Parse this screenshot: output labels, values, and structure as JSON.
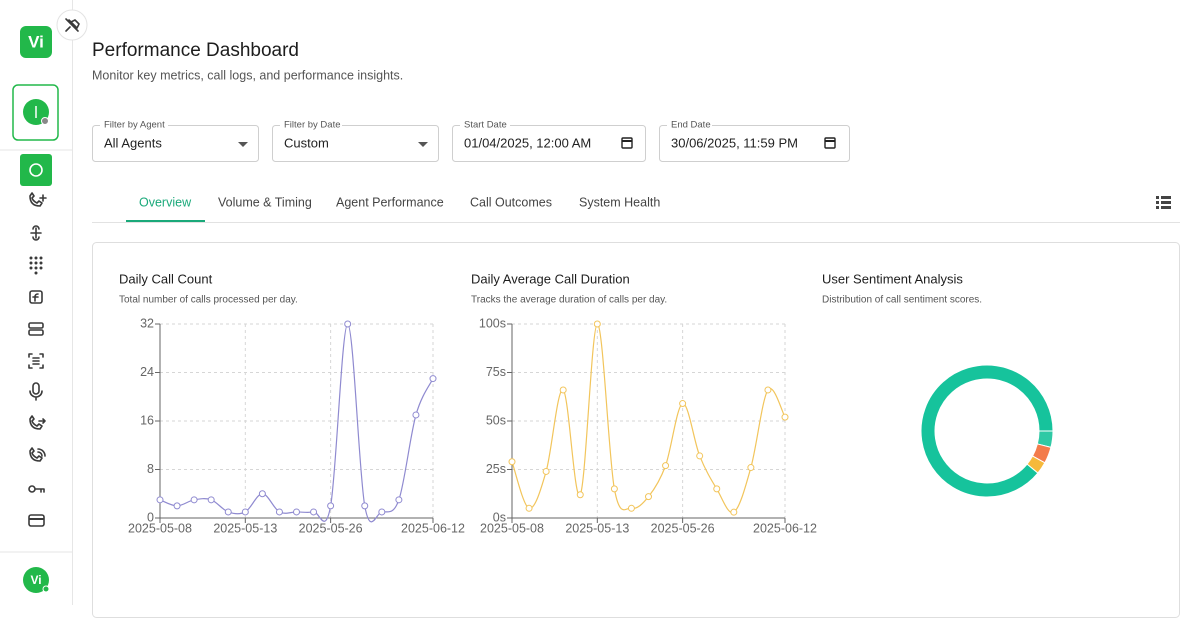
{
  "sidebar": {
    "logo": "Vi",
    "bottom_logo": "Vi"
  },
  "header": {
    "title": "Performance Dashboard",
    "subtitle": "Monitor key metrics, call logs, and performance insights."
  },
  "filters": [
    {
      "label": "Filter by Agent",
      "value": "All Agents"
    },
    {
      "label": "Filter by Date",
      "value": "Custom"
    },
    {
      "label": "Start Date",
      "value": "01/04/2025, 12:00 AM"
    },
    {
      "label": "End Date",
      "value": "30/06/2025, 11:59 PM"
    }
  ],
  "tabs": [
    "Overview",
    "Volume & Timing",
    "Agent Performance",
    "Call Outcomes",
    "System Health"
  ],
  "chart_data": [
    {
      "type": "line",
      "title": "Daily Call Count",
      "subtitle": "Total number of calls processed per day.",
      "categories": [
        "2025-05-08",
        null,
        null,
        null,
        null,
        "2025-05-13",
        null,
        null,
        null,
        null,
        "2025-05-26",
        null,
        null,
        null,
        null,
        null,
        "2025-06-12"
      ],
      "values": [
        3,
        2,
        3,
        3,
        1,
        1,
        4,
        1,
        1,
        1,
        2,
        32,
        2,
        1,
        3,
        17,
        23
      ],
      "color": "#8f8ad0",
      "ylim": [
        0,
        32
      ],
      "yticks": [
        0,
        8,
        16,
        24,
        32
      ],
      "grid": true
    },
    {
      "type": "line",
      "title": "Daily Average Call Duration",
      "subtitle": "Tracks the average duration of calls per day.",
      "categories": [
        "2025-05-08",
        null,
        null,
        null,
        null,
        "2025-05-13",
        null,
        null,
        null,
        null,
        "2025-05-26",
        null,
        null,
        null,
        null,
        null,
        "2025-06-12"
      ],
      "values": [
        29,
        5,
        24,
        66,
        12,
        100,
        15,
        5,
        11,
        27,
        59,
        32,
        15,
        3,
        26,
        66,
        52
      ],
      "color": "#f2c55c",
      "ylim": [
        0,
        100
      ],
      "yticks": [
        {
          "value": 0,
          "label": "0s"
        },
        {
          "value": 25,
          "label": "25s"
        },
        {
          "value": 50,
          "label": "50s"
        },
        {
          "value": 75,
          "label": "75s"
        },
        {
          "value": 100,
          "label": "100s"
        }
      ],
      "grid": true
    },
    {
      "type": "pie",
      "title": "User Sentiment Analysis",
      "subtitle": "Distribution of call sentiment scores.",
      "values": [
        4,
        4,
        3,
        89
      ],
      "colors": [
        "#2fc9a5",
        "#f37b4b",
        "#f6b93b",
        "#16c39c"
      ],
      "donut": true
    }
  ]
}
